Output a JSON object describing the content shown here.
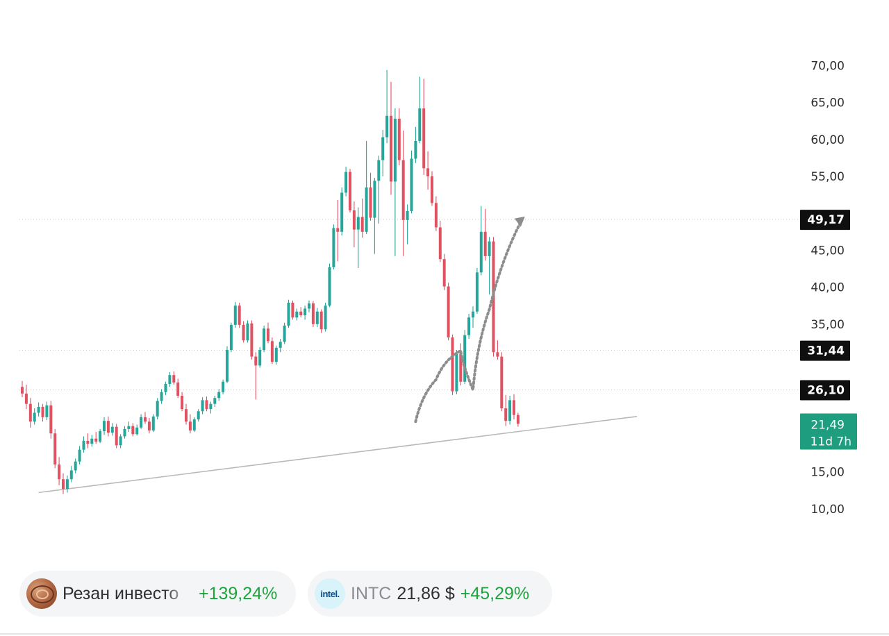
{
  "chart_data": {
    "type": "candlestick",
    "y_axis": {
      "ticks": [
        "70,00",
        "65,00",
        "60,00",
        "55,00",
        "45,00",
        "40,00",
        "35,00",
        "15,00",
        "10,00"
      ],
      "min": 6.5,
      "max": 72.3,
      "position": "right"
    },
    "price_tags": [
      {
        "label": "49,17",
        "value": 49.17,
        "style": "black"
      },
      {
        "label": "31,44",
        "value": 31.44,
        "style": "black"
      },
      {
        "label": "26,10",
        "value": 26.1,
        "style": "black"
      },
      {
        "label": "21,49",
        "sub": "11d 7h",
        "value": 21.49,
        "style": "green"
      }
    ],
    "levels": [
      49.17,
      31.44,
      26.1
    ],
    "trendline": {
      "from": {
        "bar": 4,
        "price": 12.2
      },
      "to": {
        "bar": 150,
        "price": 22.5
      }
    },
    "projection": [
      {
        "bar": 96,
        "price": 21.8
      },
      {
        "bar": 101,
        "price": 27.5
      },
      {
        "bar": 107,
        "price": 31.4
      },
      {
        "bar": 110,
        "price": 26.1
      },
      {
        "bar": 114,
        "price": 37
      },
      {
        "bar": 122,
        "price": 49.2
      }
    ],
    "candles": [
      [
        26.5,
        27.3,
        25.1,
        25.6
      ],
      [
        25.6,
        26.8,
        23.5,
        24.2
      ],
      [
        24.2,
        25,
        21,
        21.8
      ],
      [
        21.8,
        23.6,
        21.4,
        23
      ],
      [
        23,
        24.4,
        22.5,
        23.8
      ],
      [
        23.8,
        24.2,
        21.8,
        22.4
      ],
      [
        22.4,
        24.5,
        22,
        24
      ],
      [
        24,
        24.6,
        19.5,
        20.2
      ],
      [
        20.2,
        20.8,
        15.5,
        16
      ],
      [
        16,
        17,
        13.2,
        14
      ],
      [
        14,
        14.8,
        12,
        12.7
      ],
      [
        12.7,
        14.5,
        12.2,
        14
      ],
      [
        14,
        15.8,
        13.6,
        15.2
      ],
      [
        15.2,
        16.8,
        14.8,
        16.4
      ],
      [
        16.4,
        18.5,
        16,
        18
      ],
      [
        18,
        19.8,
        17.6,
        19.2
      ],
      [
        19.2,
        20.2,
        18.2,
        18.8
      ],
      [
        18.8,
        20,
        18.4,
        19.5
      ],
      [
        19.5,
        20.4,
        18.8,
        19.1
      ],
      [
        19.1,
        20.8,
        18.9,
        20.5
      ],
      [
        20.5,
        22.4,
        20,
        21.9
      ],
      [
        21.9,
        22.5,
        19.8,
        20.3
      ],
      [
        20.3,
        21.6,
        19.9,
        21.1
      ],
      [
        21.1,
        21.5,
        18.2,
        18.6
      ],
      [
        18.6,
        20.1,
        18.2,
        19.8
      ],
      [
        19.8,
        21.2,
        19.5,
        20.8
      ],
      [
        20.8,
        21.8,
        20.4,
        21.2
      ],
      [
        21.2,
        21.6,
        19.8,
        20.1
      ],
      [
        20.1,
        21.4,
        19.9,
        21
      ],
      [
        21,
        22.8,
        20.8,
        22.4
      ],
      [
        22.4,
        23.1,
        21.5,
        21.8
      ],
      [
        21.8,
        22.3,
        20.2,
        20.6
      ],
      [
        20.6,
        22.8,
        20.4,
        22.5
      ],
      [
        22.5,
        25,
        22.1,
        24.6
      ],
      [
        24.6,
        26.2,
        24.2,
        25.8
      ],
      [
        25.8,
        27.2,
        25.4,
        26.9
      ],
      [
        26.9,
        28.5,
        26.5,
        28.1
      ],
      [
        28.1,
        28.6,
        26.8,
        27.1
      ],
      [
        27.1,
        27.6,
        25,
        25.3
      ],
      [
        25.3,
        25.8,
        23.2,
        23.5
      ],
      [
        23.5,
        24.2,
        21.4,
        21.8
      ],
      [
        21.8,
        22.8,
        20.2,
        20.6
      ],
      [
        20.6,
        22.4,
        20.4,
        22.1
      ],
      [
        22.1,
        23.5,
        21.8,
        23.2
      ],
      [
        23.2,
        25.1,
        22.8,
        24.7
      ],
      [
        24.7,
        25.2,
        23.2,
        23.5
      ],
      [
        23.5,
        24.5,
        22.9,
        24.2
      ],
      [
        24.2,
        25.3,
        23.8,
        25
      ],
      [
        25,
        26.2,
        24.6,
        25.8
      ],
      [
        25.8,
        27.5,
        25.5,
        27.2
      ],
      [
        27.2,
        32,
        27,
        31.5
      ],
      [
        31.5,
        35.2,
        31.2,
        34.9
      ],
      [
        34.9,
        38,
        34.5,
        37.5
      ],
      [
        37.5,
        37.9,
        34.5,
        34.9
      ],
      [
        34.9,
        35.4,
        32.5,
        32.8
      ],
      [
        32.8,
        35.5,
        32.5,
        35.1
      ],
      [
        35.1,
        35.5,
        30.2,
        30.6
      ],
      [
        30.6,
        31.2,
        24.8,
        29.4
      ],
      [
        29.4,
        31.9,
        29.1,
        31.5
      ],
      [
        31.5,
        34.8,
        31.2,
        34.4
      ],
      [
        34.4,
        35.2,
        32.4,
        32.7
      ],
      [
        32.7,
        33.2,
        29.6,
        29.9
      ],
      [
        29.9,
        32.1,
        29.5,
        31.8
      ],
      [
        31.8,
        33,
        31.2,
        32.6
      ],
      [
        32.6,
        35.2,
        32.3,
        34.8
      ],
      [
        34.8,
        38.3,
        34.5,
        37.9
      ],
      [
        37.9,
        38.2,
        35.6,
        35.9
      ],
      [
        35.9,
        37.1,
        35.5,
        36.7
      ],
      [
        36.7,
        37.3,
        35.9,
        36.2
      ],
      [
        36.2,
        37.5,
        35.6,
        37.1
      ],
      [
        37.1,
        38.2,
        36.6,
        37.8
      ],
      [
        37.8,
        38.1,
        34.6,
        35
      ],
      [
        35,
        37.2,
        34.6,
        36.7
      ],
      [
        36.7,
        37,
        33.8,
        34.3
      ],
      [
        34.3,
        37.9,
        34,
        37.5
      ],
      [
        37.5,
        43.2,
        37.3,
        42.7
      ],
      [
        42.7,
        48.5,
        42.4,
        48
      ],
      [
        48,
        51.8,
        43.5,
        47.5
      ],
      [
        47.5,
        53.5,
        47,
        52.8
      ],
      [
        52.8,
        56.3,
        52.3,
        55.6
      ],
      [
        55.6,
        56,
        50.1,
        50.4
      ],
      [
        50.4,
        51.6,
        45.4,
        47.8
      ],
      [
        47.8,
        50.8,
        42.6,
        49.5
      ],
      [
        49.5,
        52,
        46.7,
        47.5
      ],
      [
        47.5,
        59.8,
        47.2,
        53.5
      ],
      [
        53.5,
        55.5,
        49,
        49.4
      ],
      [
        49.4,
        54.8,
        44.5,
        54.4
      ],
      [
        54.4,
        57.8,
        48.6,
        57.2
      ],
      [
        57.2,
        61.3,
        55,
        60.3
      ],
      [
        60.3,
        69.4,
        59.5,
        63.2
      ],
      [
        63.2,
        67.8,
        52.5,
        54.3
      ],
      [
        54.3,
        64.2,
        44.2,
        62.8
      ],
      [
        62.8,
        64.2,
        56.5,
        57.2
      ],
      [
        57.2,
        61.2,
        44.2,
        49.1
      ],
      [
        49.1,
        51.2,
        45.8,
        50.3
      ],
      [
        50.3,
        58.5,
        50,
        57.4
      ],
      [
        57.4,
        61.7,
        56.8,
        59.8
      ],
      [
        59.8,
        68.5,
        59.5,
        64.2
      ],
      [
        64.2,
        68.2,
        55.2,
        56.1
      ],
      [
        56.1,
        58.4,
        53.2,
        55
      ],
      [
        55,
        55.7,
        51,
        51.4
      ],
      [
        51.4,
        52.3,
        47.6,
        48.1
      ],
      [
        48.1,
        49,
        43.4,
        43.8
      ],
      [
        43.8,
        44.5,
        39.6,
        40.1
      ],
      [
        40.1,
        40.6,
        32.8,
        33.2
      ],
      [
        33.2,
        33.6,
        25.4,
        25.9
      ],
      [
        25.9,
        31.5,
        25.5,
        31
      ],
      [
        31,
        32.4,
        26.7,
        27.2
      ],
      [
        27.2,
        34.2,
        26.9,
        33.5
      ],
      [
        33.5,
        36.4,
        33,
        35.9
      ],
      [
        35.9,
        37.4,
        34.5,
        36.7
      ],
      [
        36.7,
        42.6,
        36.4,
        42
      ],
      [
        42,
        51,
        41.6,
        47.5
      ],
      [
        47.5,
        50.6,
        43.6,
        44.2
      ],
      [
        44.2,
        46.8,
        39,
        46.2
      ],
      [
        46.2,
        46.8,
        30.6,
        31.2
      ],
      [
        31.2,
        32.8,
        30.2,
        30.6
      ],
      [
        30.6,
        31.2,
        23.2,
        23.6
      ],
      [
        23.6,
        25.4,
        21.2,
        21.9
      ],
      [
        21.9,
        25.3,
        21.4,
        24.7
      ],
      [
        24.7,
        25.5,
        22.1,
        22.7
      ],
      [
        22.7,
        23,
        21.1,
        21.5
      ]
    ]
  },
  "footer": {
    "author_name": "Резан инвесто",
    "author_perf": "+139,24%",
    "intel_logo": "intel.",
    "ticker": "INTC",
    "price": "21,86 $",
    "ticker_perf": "+45,29%"
  },
  "colors": {
    "up": "#26a69a",
    "down": "#e05262",
    "tag": "#0f0f0f",
    "current": "#1e9e7e"
  }
}
